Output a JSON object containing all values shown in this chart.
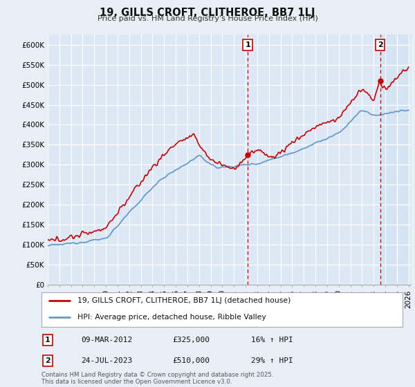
{
  "title": "19, GILLS CROFT, CLITHEROE, BB7 1LJ",
  "subtitle": "Price paid vs. HM Land Registry's House Price Index (HPI)",
  "ylim": [
    0,
    625000
  ],
  "yticks": [
    0,
    50000,
    100000,
    150000,
    200000,
    250000,
    300000,
    350000,
    400000,
    450000,
    500000,
    550000,
    600000
  ],
  "ytick_labels": [
    "£0",
    "£50K",
    "£100K",
    "£150K",
    "£200K",
    "£250K",
    "£300K",
    "£350K",
    "£400K",
    "£450K",
    "£500K",
    "£550K",
    "£600K"
  ],
  "xlim_start": 1995.0,
  "xlim_end": 2026.2,
  "background_color": "#e8eef5",
  "plot_bg_color": "#dce8f5",
  "shade_bg_color": "#d0e4f0",
  "grid_color": "#ffffff",
  "red_line_color": "#cc0000",
  "blue_line_color": "#6699cc",
  "shade_fill_color": "#c8ddf0",
  "marker1_date": 2012.18,
  "marker2_date": 2023.56,
  "legend_label1": "19, GILLS CROFT, CLITHEROE, BB7 1LJ (detached house)",
  "legend_label2": "HPI: Average price, detached house, Ribble Valley",
  "annotation1_label": "1",
  "annotation1_text": "09-MAR-2012",
  "annotation1_price": "£325,000",
  "annotation1_hpi": "16% ↑ HPI",
  "annotation2_label": "2",
  "annotation2_text": "24-JUL-2023",
  "annotation2_price": "£510,000",
  "annotation2_hpi": "29% ↑ HPI",
  "footer": "Contains HM Land Registry data © Crown copyright and database right 2025.\nThis data is licensed under the Open Government Licence v3.0."
}
